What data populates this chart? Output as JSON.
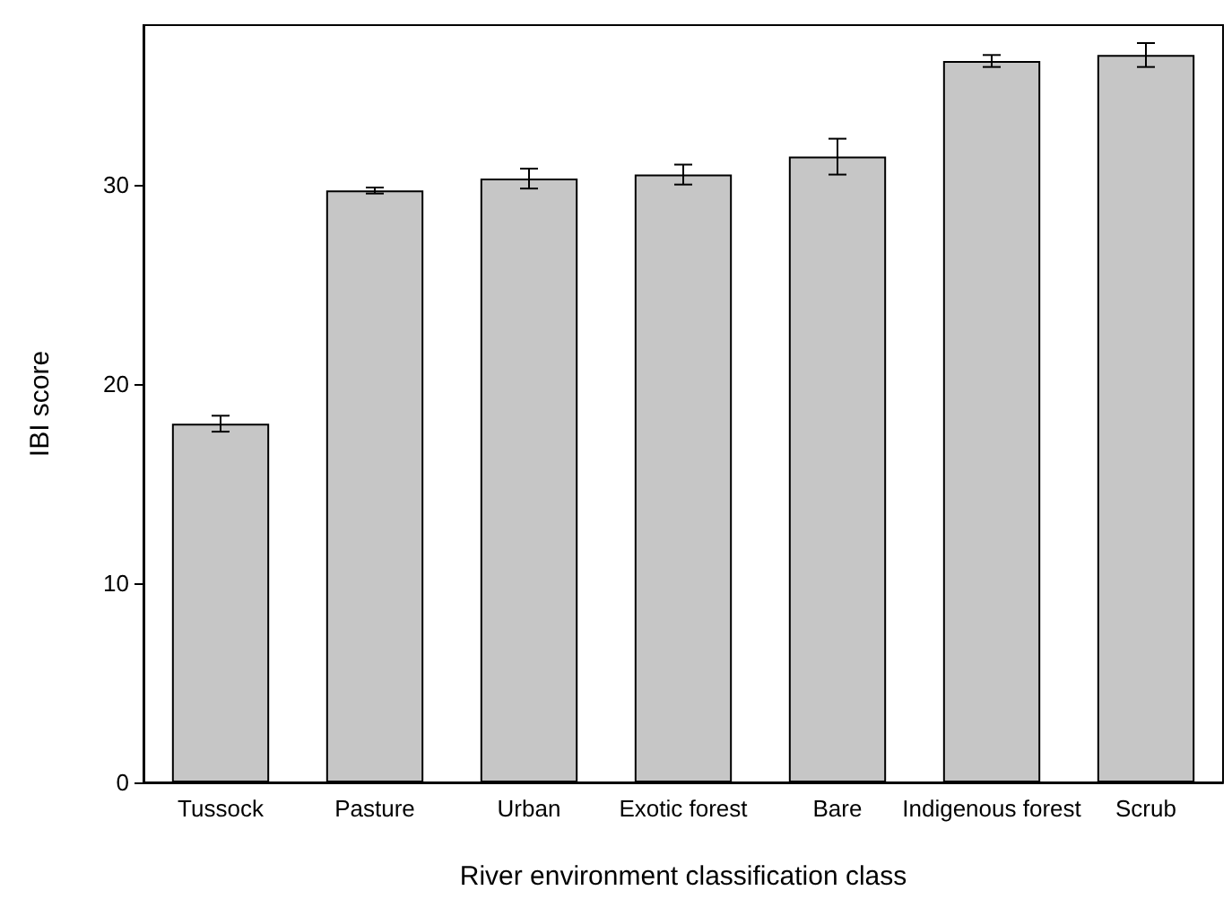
{
  "chart_data": {
    "type": "bar",
    "xlabel": "River environment classification class",
    "ylabel": "IBI score",
    "categories": [
      "Tussock",
      "Pasture",
      "Urban",
      "Exotic forest",
      "Bare",
      "Indigenous forest",
      "Scrub"
    ],
    "values": [
      18.0,
      29.7,
      30.3,
      30.5,
      31.4,
      36.2,
      36.5
    ],
    "errors": [
      0.4,
      0.15,
      0.5,
      0.5,
      0.9,
      0.3,
      0.6
    ],
    "color": "#c6c6c6",
    "ylim": [
      0,
      38
    ],
    "yticks": [
      0,
      10,
      20,
      30
    ],
    "grid": false
  }
}
